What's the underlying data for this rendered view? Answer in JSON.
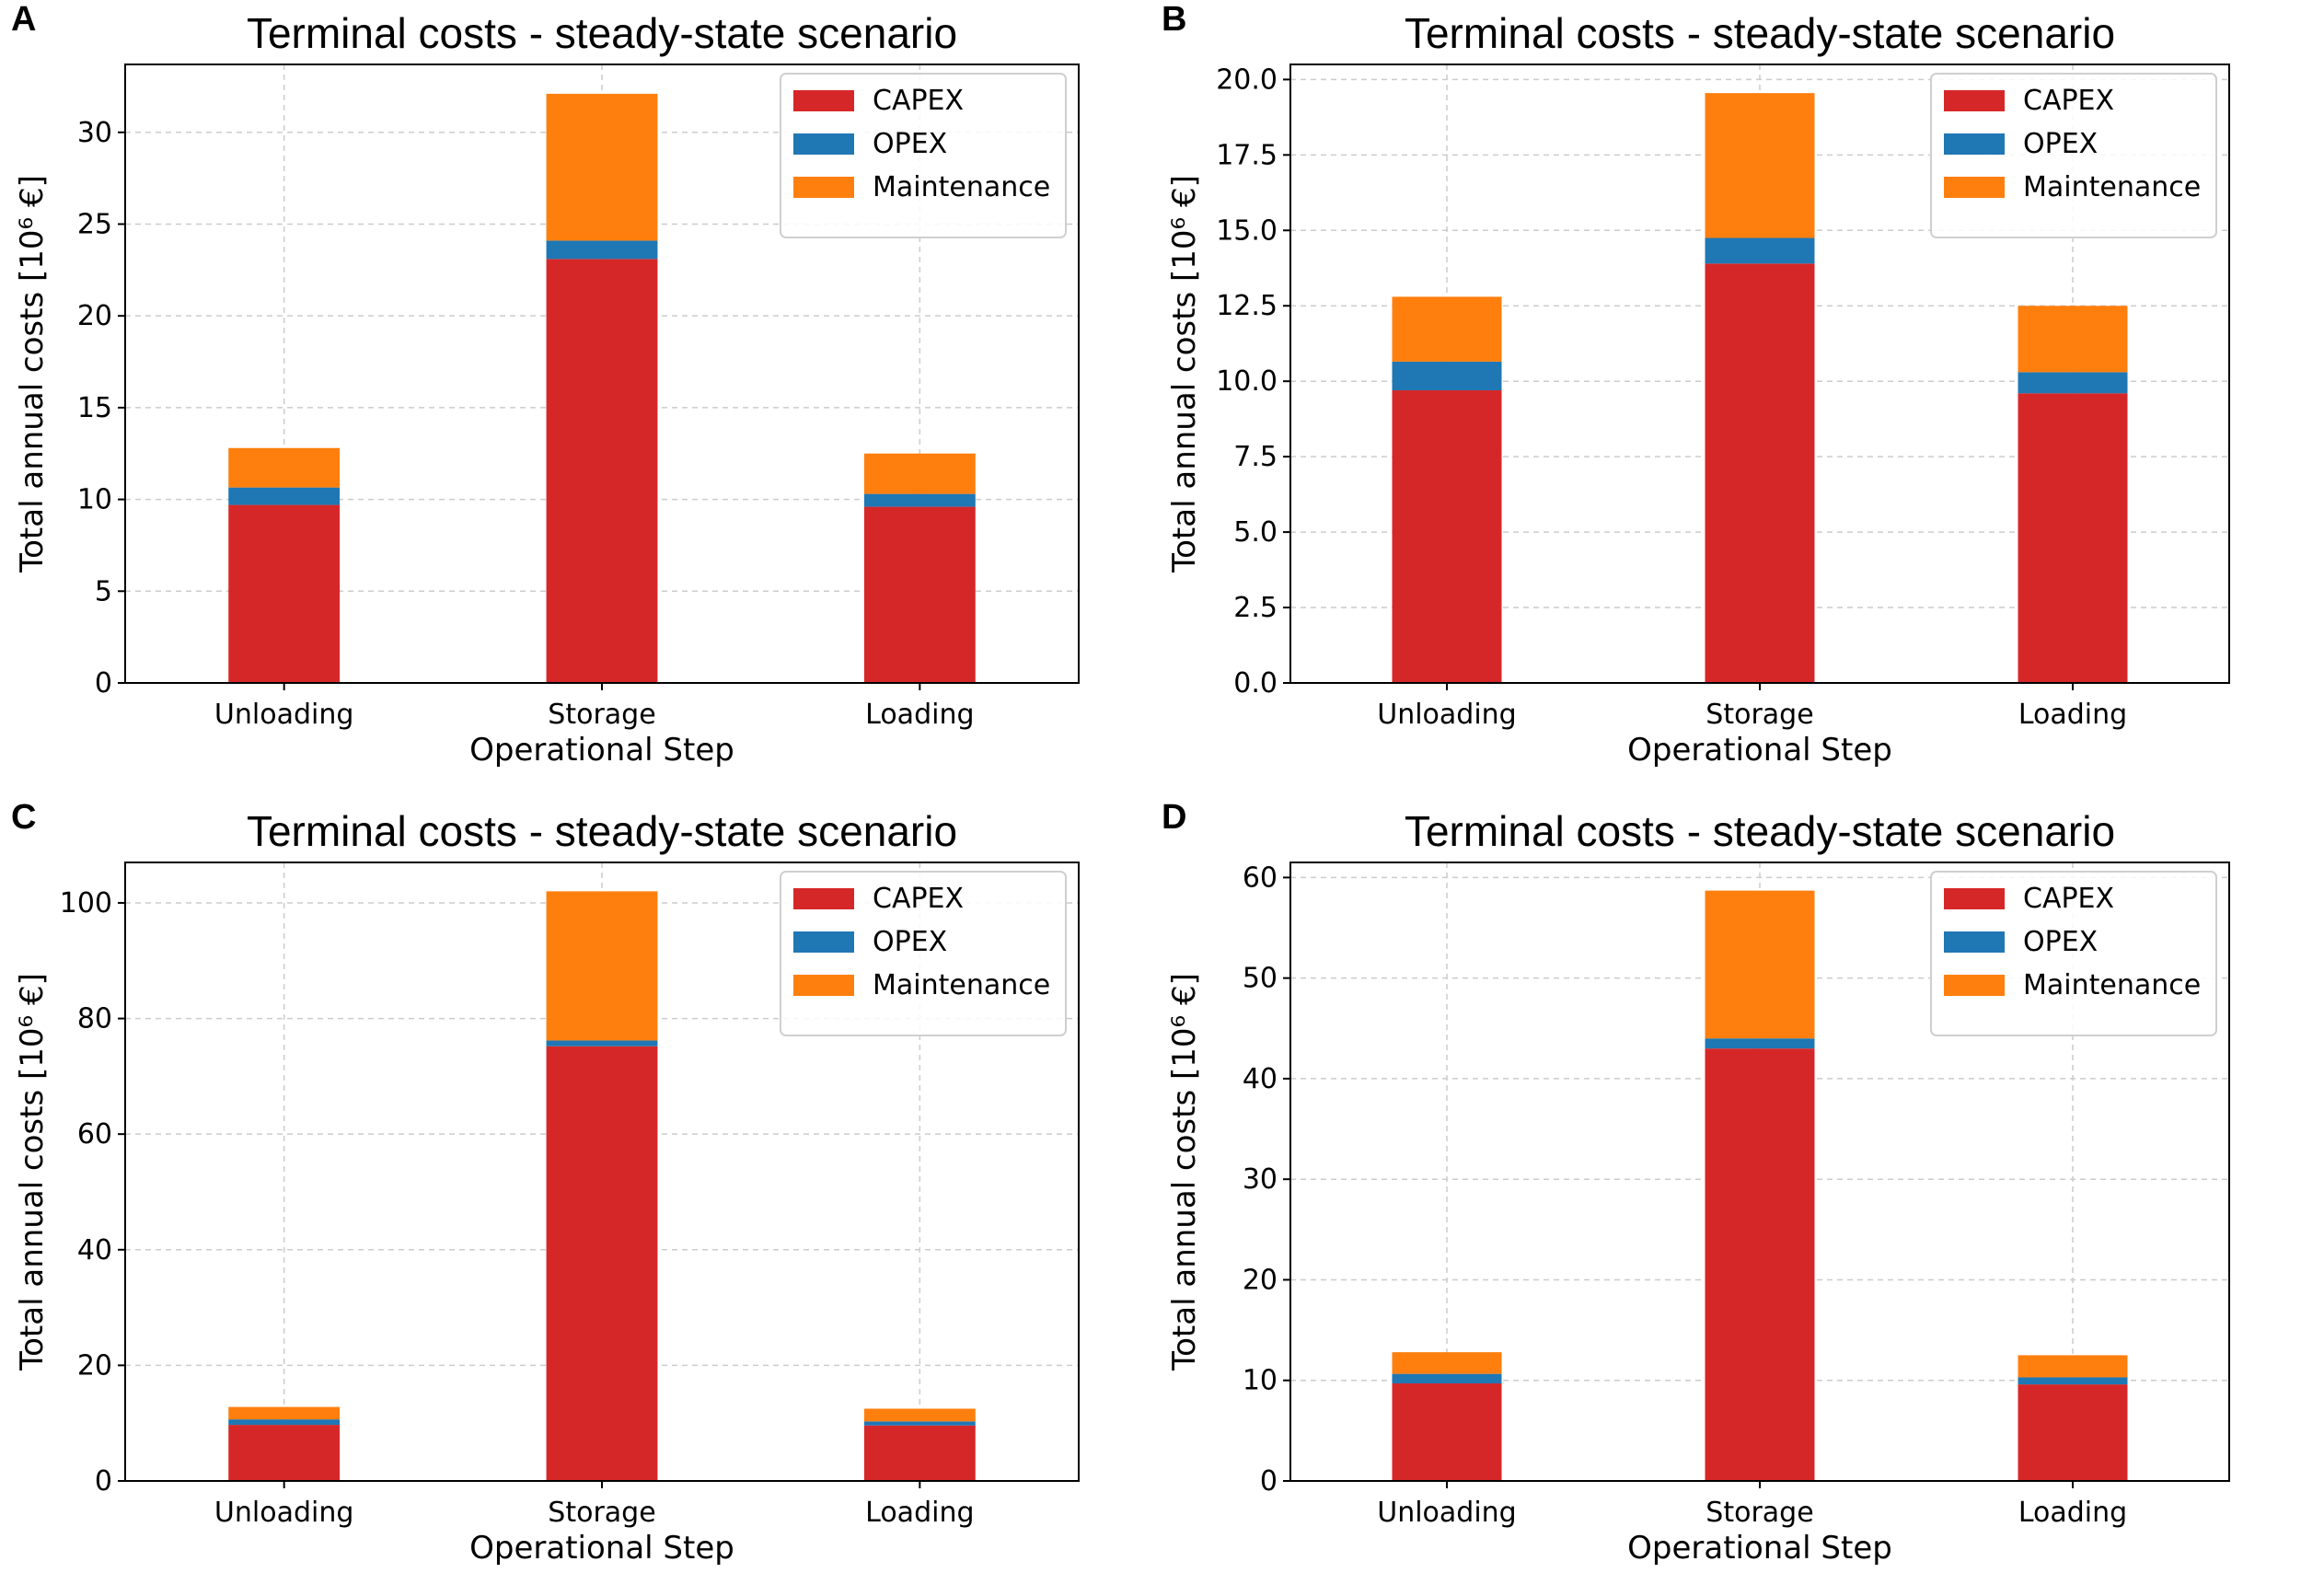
{
  "colors": {
    "CAPEX": "#d62728",
    "OPEX": "#1f77b4",
    "Maintenance": "#ff7f0e",
    "grid": "#cccccc"
  },
  "chart_data": [
    {
      "panel": "A",
      "type": "bar",
      "stacked": true,
      "title": "Terminal costs - steady-state scenario",
      "xlabel": "Operational Step",
      "ylabel": "Total annual costs [10⁶ €]",
      "categories": [
        "Unloading",
        "Storage",
        "Loading"
      ],
      "series": [
        {
          "name": "CAPEX",
          "values": [
            9.7,
            23.1,
            9.6
          ]
        },
        {
          "name": "OPEX",
          "values": [
            0.95,
            1.0,
            0.7
          ]
        },
        {
          "name": "Maintenance",
          "values": [
            2.15,
            8.0,
            2.2
          ]
        }
      ],
      "ylim": [
        0,
        33.7
      ],
      "yticks": [
        0,
        5,
        10,
        15,
        20,
        25,
        30
      ],
      "ytick_labels": [
        "0",
        "5",
        "10",
        "15",
        "20",
        "25",
        "30"
      ],
      "grid": true,
      "legend": "top-right"
    },
    {
      "panel": "B",
      "type": "bar",
      "stacked": true,
      "title": "Terminal costs - steady-state scenario",
      "xlabel": "Operational Step",
      "ylabel": "Total annual costs [10⁶ €]",
      "categories": [
        "Unloading",
        "Storage",
        "Loading"
      ],
      "series": [
        {
          "name": "CAPEX",
          "values": [
            9.7,
            13.9,
            9.6
          ]
        },
        {
          "name": "OPEX",
          "values": [
            0.95,
            0.85,
            0.7
          ]
        },
        {
          "name": "Maintenance",
          "values": [
            2.15,
            4.8,
            2.2
          ]
        }
      ],
      "ylim": [
        0,
        20.5
      ],
      "yticks": [
        0,
        2.5,
        5,
        7.5,
        10,
        12.5,
        15,
        17.5,
        20
      ],
      "ytick_labels": [
        "0.0",
        "2.5",
        "5.0",
        "7.5",
        "10.0",
        "12.5",
        "15.0",
        "17.5",
        "20.0"
      ],
      "grid": true,
      "legend": "top-right"
    },
    {
      "panel": "C",
      "type": "bar",
      "stacked": true,
      "title": "Terminal costs - steady-state scenario",
      "xlabel": "Operational Step",
      "ylabel": "Total annual costs [10⁶ €]",
      "categories": [
        "Unloading",
        "Storage",
        "Loading"
      ],
      "series": [
        {
          "name": "CAPEX",
          "values": [
            9.7,
            75.2,
            9.6
          ]
        },
        {
          "name": "OPEX",
          "values": [
            0.95,
            1.0,
            0.7
          ]
        },
        {
          "name": "Maintenance",
          "values": [
            2.15,
            25.8,
            2.2
          ]
        }
      ],
      "ylim": [
        0,
        107
      ],
      "yticks": [
        0,
        20,
        40,
        60,
        80,
        100
      ],
      "ytick_labels": [
        "0",
        "20",
        "40",
        "60",
        "80",
        "100"
      ],
      "grid": true,
      "legend": "top-right"
    },
    {
      "panel": "D",
      "type": "bar",
      "stacked": true,
      "title": "Terminal costs - steady-state scenario",
      "xlabel": "Operational Step",
      "ylabel": "Total annual costs [10⁶ €]",
      "categories": [
        "Unloading",
        "Storage",
        "Loading"
      ],
      "series": [
        {
          "name": "CAPEX",
          "values": [
            9.7,
            43.0,
            9.6
          ]
        },
        {
          "name": "OPEX",
          "values": [
            0.95,
            1.0,
            0.7
          ]
        },
        {
          "name": "Maintenance",
          "values": [
            2.15,
            14.7,
            2.2
          ]
        }
      ],
      "ylim": [
        0,
        61.5
      ],
      "yticks": [
        0,
        10,
        20,
        30,
        40,
        50,
        60
      ],
      "ytick_labels": [
        "0",
        "10",
        "20",
        "30",
        "40",
        "50",
        "60"
      ],
      "grid": true,
      "legend": "top-right"
    }
  ]
}
